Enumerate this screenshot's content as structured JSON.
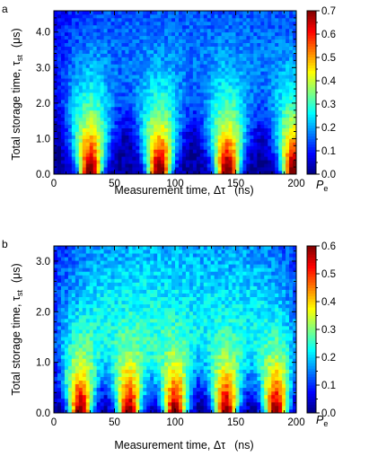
{
  "chart_data": [
    {
      "type": "heatmap",
      "panel_label": "a",
      "xlabel_main": "Measurement time, Δτ",
      "xlabel_unit": "(ns)",
      "ylabel_main": "Total storage time, τ",
      "ylabel_sub": "st",
      "ylabel_unit": "(μs)",
      "xlim": [
        0,
        200
      ],
      "ylim": [
        0,
        4.6
      ],
      "xticks": [
        0,
        50,
        100,
        150,
        200
      ],
      "xtick_labels": [
        "0",
        "50",
        "100",
        "150",
        "200"
      ],
      "yticks": [
        0,
        1,
        2,
        3,
        4
      ],
      "ytick_labels": [
        "0.0",
        "1.0",
        "2.0",
        "3.0",
        "4.0"
      ],
      "colorbar_label_main": "P",
      "colorbar_label_sub": "e",
      "colorbar_range": [
        0,
        0.7
      ],
      "colorbar_ticks": [
        0,
        0.1,
        0.2,
        0.3,
        0.4,
        0.5,
        0.6,
        0.7
      ],
      "colorbar_tick_labels": [
        "0.0",
        "0.1",
        "0.2",
        "0.3",
        "0.4",
        "0.5",
        "0.6",
        "0.7"
      ],
      "peak_positions_ns": [
        30,
        87,
        143,
        198
      ],
      "peak_value": 0.7,
      "grid": false
    },
    {
      "type": "heatmap",
      "panel_label": "b",
      "xlabel_main": "Measurement time, Δτ",
      "xlabel_unit": "(ns)",
      "ylabel_main": "Total storage time, τ",
      "ylabel_sub": "st",
      "ylabel_unit": "(μs)",
      "xlim": [
        0,
        200
      ],
      "ylim": [
        0,
        3.3
      ],
      "xticks": [
        0,
        50,
        100,
        150,
        200
      ],
      "xtick_labels": [
        "0",
        "50",
        "100",
        "150",
        "200"
      ],
      "yticks": [
        0,
        1,
        2,
        3
      ],
      "ytick_labels": [
        "0.0",
        "1.0",
        "2.0",
        "3.0"
      ],
      "colorbar_label_main": "P",
      "colorbar_label_sub": "e",
      "colorbar_range": [
        0,
        0.6
      ],
      "colorbar_ticks": [
        0,
        0.1,
        0.2,
        0.3,
        0.4,
        0.5,
        0.6
      ],
      "colorbar_tick_labels": [
        "0.0",
        "0.1",
        "0.2",
        "0.3",
        "0.4",
        "0.5",
        "0.6"
      ],
      "peak_positions_ns": [
        22,
        62,
        100,
        142,
        183
      ],
      "peak_value": 0.55,
      "grid": false
    }
  ]
}
